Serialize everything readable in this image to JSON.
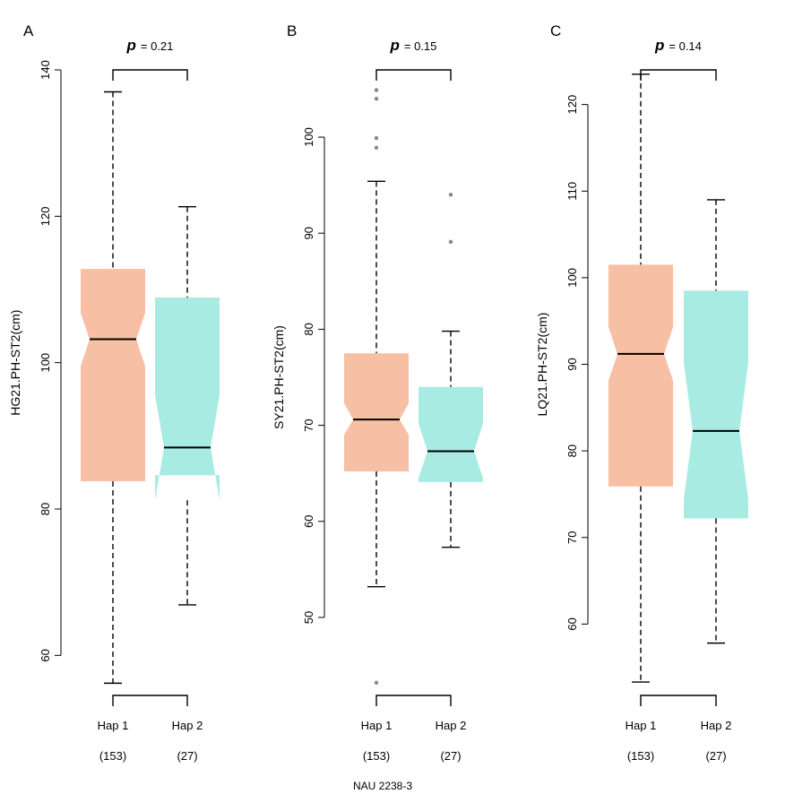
{
  "footer": "NAU 2238-3",
  "colors": {
    "hap1": "#f7bfa4",
    "hap2": "#a8ebe3",
    "line": "#000000"
  },
  "chart_data": [
    {
      "type": "boxplot",
      "panel": "A",
      "ylabel": "HG21.PH-ST2(cm)",
      "ylim": [
        56,
        140
      ],
      "yticks": [
        60,
        80,
        100,
        120,
        140
      ],
      "p_label": "p",
      "p_value": "= 0.21",
      "categories": [
        "Hap 1",
        "Hap 2"
      ],
      "counts": [
        "(153)",
        "(27)"
      ],
      "boxes": [
        {
          "name": "Hap 1",
          "whisker_low": 56.2,
          "q1": 83.8,
          "median": 103.2,
          "q3": 112.8,
          "whisker_high": 137.0,
          "notch_low": 99.5,
          "notch_high": 106.8,
          "outliers": []
        },
        {
          "name": "Hap 2",
          "whisker_low": 66.9,
          "q1": 84.6,
          "median": 88.4,
          "q3": 108.9,
          "whisker_high": 121.3,
          "notch_low": 81.2,
          "notch_high": 95.6,
          "outliers": []
        }
      ]
    },
    {
      "type": "boxplot",
      "panel": "B",
      "ylabel": "SY21.PH-ST2(cm)",
      "ylim": [
        43,
        107
      ],
      "yticks": [
        50,
        60,
        70,
        80,
        90,
        100
      ],
      "p_label": "p",
      "p_value": "= 0.15",
      "categories": [
        "Hap 1",
        "Hap 2"
      ],
      "counts": [
        "(153)",
        "(27)"
      ],
      "boxes": [
        {
          "name": "Hap 1",
          "whisker_low": 53.2,
          "q1": 65.2,
          "median": 70.6,
          "q3": 77.5,
          "whisker_high": 95.4,
          "notch_low": 69.0,
          "notch_high": 72.3,
          "outliers": [
            43.2,
            98.9,
            99.9,
            104.0,
            104.9
          ]
        },
        {
          "name": "Hap 2",
          "whisker_low": 57.3,
          "q1": 64.1,
          "median": 67.3,
          "q3": 74.0,
          "whisker_high": 79.8,
          "notch_low": 64.5,
          "notch_high": 70.2,
          "outliers": [
            89.1,
            94.0
          ]
        }
      ]
    },
    {
      "type": "boxplot",
      "panel": "C",
      "ylabel": "LQ21.PH-ST2(cm)",
      "ylim": [
        53,
        124
      ],
      "yticks": [
        60,
        70,
        80,
        90,
        100,
        110,
        120
      ],
      "p_label": "p",
      "p_value": "= 0.14",
      "categories": [
        "Hap 1",
        "Hap 2"
      ],
      "counts": [
        "(153)",
        "(27)"
      ],
      "boxes": [
        {
          "name": "Hap 1",
          "whisker_low": 53.3,
          "q1": 75.9,
          "median": 91.2,
          "q3": 101.5,
          "whisker_high": 123.5,
          "notch_low": 88.1,
          "notch_high": 94.3,
          "outliers": []
        },
        {
          "name": "Hap 2",
          "whisker_low": 57.8,
          "q1": 72.2,
          "median": 82.3,
          "q3": 98.5,
          "whisker_high": 109.0,
          "notch_low": 74.4,
          "notch_high": 90.2,
          "outliers": []
        }
      ]
    }
  ]
}
